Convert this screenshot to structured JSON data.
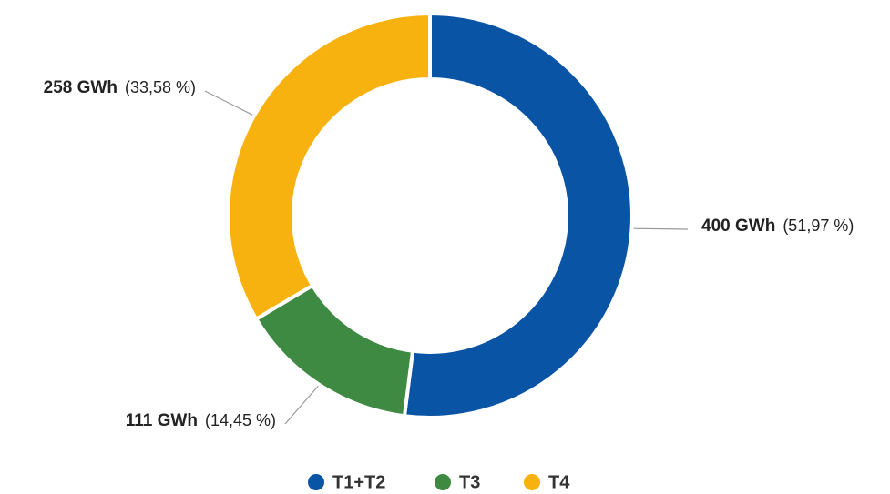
{
  "chart_data": {
    "type": "donut",
    "categories": [
      "T1+T2",
      "T3",
      "T4"
    ],
    "values": [
      400,
      111,
      258
    ],
    "value_labels": [
      "400 GWh",
      "111 GWh",
      "258 GWh"
    ],
    "percent_labels": [
      "(51,97 %)",
      "(14,45 %)",
      "(33,58 %)"
    ],
    "colors": [
      "#0a54a5",
      "#3f8a43",
      "#f8b20f"
    ],
    "legend": "bottom"
  }
}
